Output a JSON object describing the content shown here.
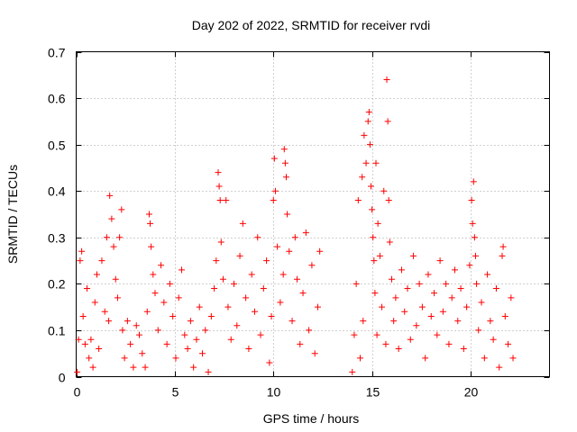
{
  "chart_data": {
    "type": "scatter",
    "title": "Day 202 of 2022, SRMTID for receiver rvdi",
    "xlabel": "GPS time / hours",
    "ylabel": "SRMTID / TECUs",
    "xlim": [
      0,
      24
    ],
    "ylim": [
      0,
      0.7
    ],
    "xticks": [
      0,
      5,
      10,
      15,
      20
    ],
    "xtick_labels": [
      "0",
      "5",
      "10",
      "15",
      "20"
    ],
    "yticks": [
      0,
      0.1,
      0.2,
      0.3,
      0.4,
      0.5,
      0.6,
      0.7
    ],
    "ytick_labels": [
      "0",
      "0.1",
      "0.2",
      "0.3",
      "0.4",
      "0.5",
      "0.6",
      "0.7"
    ],
    "grid": true,
    "marker": "+",
    "color": "#ff0000",
    "data_gap_hours": [
      12.4,
      13.9
    ],
    "series": [
      {
        "name": "rvdi",
        "points": [
          [
            0.05,
            0.01
          ],
          [
            0.12,
            0.08
          ],
          [
            0.2,
            0.25
          ],
          [
            0.28,
            0.27
          ],
          [
            0.35,
            0.13
          ],
          [
            0.45,
            0.07
          ],
          [
            0.55,
            0.19
          ],
          [
            0.65,
            0.04
          ],
          [
            0.75,
            0.08
          ],
          [
            0.85,
            0.02
          ],
          [
            0.95,
            0.16
          ],
          [
            1.05,
            0.22
          ],
          [
            1.15,
            0.06
          ],
          [
            1.3,
            0.25
          ],
          [
            1.45,
            0.14
          ],
          [
            1.55,
            0.3
          ],
          [
            1.65,
            0.12
          ],
          [
            1.7,
            0.39
          ],
          [
            1.8,
            0.34
          ],
          [
            1.9,
            0.28
          ],
          [
            2.0,
            0.21
          ],
          [
            2.1,
            0.17
          ],
          [
            2.2,
            0.3
          ],
          [
            2.3,
            0.36
          ],
          [
            2.35,
            0.1
          ],
          [
            2.45,
            0.04
          ],
          [
            2.6,
            0.12
          ],
          [
            2.75,
            0.07
          ],
          [
            2.9,
            0.02
          ],
          [
            3.05,
            0.11
          ],
          [
            3.2,
            0.09
          ],
          [
            3.35,
            0.05
          ],
          [
            3.5,
            0.02
          ],
          [
            3.6,
            0.14
          ],
          [
            3.7,
            0.35
          ],
          [
            3.75,
            0.33
          ],
          [
            3.8,
            0.28
          ],
          [
            3.9,
            0.22
          ],
          [
            4.0,
            0.18
          ],
          [
            4.15,
            0.1
          ],
          [
            4.3,
            0.24
          ],
          [
            4.45,
            0.16
          ],
          [
            4.6,
            0.07
          ],
          [
            4.75,
            0.2
          ],
          [
            4.9,
            0.13
          ],
          [
            5.05,
            0.04
          ],
          [
            5.2,
            0.17
          ],
          [
            5.35,
            0.23
          ],
          [
            5.5,
            0.09
          ],
          [
            5.65,
            0.06
          ],
          [
            5.8,
            0.12
          ],
          [
            5.95,
            0.02
          ],
          [
            6.1,
            0.08
          ],
          [
            6.25,
            0.15
          ],
          [
            6.4,
            0.05
          ],
          [
            6.55,
            0.1
          ],
          [
            6.7,
            0.01
          ],
          [
            6.85,
            0.13
          ],
          [
            7.0,
            0.19
          ],
          [
            7.1,
            0.25
          ],
          [
            7.2,
            0.44
          ],
          [
            7.25,
            0.41
          ],
          [
            7.3,
            0.38
          ],
          [
            7.35,
            0.29
          ],
          [
            7.45,
            0.21
          ],
          [
            7.6,
            0.38
          ],
          [
            7.7,
            0.15
          ],
          [
            7.85,
            0.08
          ],
          [
            8.0,
            0.2
          ],
          [
            8.15,
            0.11
          ],
          [
            8.3,
            0.26
          ],
          [
            8.45,
            0.33
          ],
          [
            8.6,
            0.17
          ],
          [
            8.75,
            0.06
          ],
          [
            8.9,
            0.22
          ],
          [
            9.05,
            0.14
          ],
          [
            9.2,
            0.3
          ],
          [
            9.35,
            0.09
          ],
          [
            9.5,
            0.19
          ],
          [
            9.65,
            0.25
          ],
          [
            9.8,
            0.03
          ],
          [
            9.9,
            0.13
          ],
          [
            10.0,
            0.38
          ],
          [
            10.05,
            0.47
          ],
          [
            10.1,
            0.4
          ],
          [
            10.2,
            0.28
          ],
          [
            10.35,
            0.16
          ],
          [
            10.5,
            0.22
          ],
          [
            10.55,
            0.49
          ],
          [
            10.6,
            0.46
          ],
          [
            10.65,
            0.43
          ],
          [
            10.7,
            0.35
          ],
          [
            10.8,
            0.27
          ],
          [
            10.95,
            0.12
          ],
          [
            11.1,
            0.3
          ],
          [
            11.2,
            0.21
          ],
          [
            11.35,
            0.07
          ],
          [
            11.5,
            0.18
          ],
          [
            11.65,
            0.31
          ],
          [
            11.8,
            0.1
          ],
          [
            11.95,
            0.24
          ],
          [
            12.1,
            0.05
          ],
          [
            12.25,
            0.15
          ],
          [
            12.35,
            0.27
          ],
          [
            14.0,
            0.01
          ],
          [
            14.1,
            0.09
          ],
          [
            14.2,
            0.2
          ],
          [
            14.3,
            0.38
          ],
          [
            14.4,
            0.04
          ],
          [
            14.5,
            0.43
          ],
          [
            14.55,
            0.12
          ],
          [
            14.6,
            0.52
          ],
          [
            14.7,
            0.46
          ],
          [
            14.8,
            0.55
          ],
          [
            14.85,
            0.57
          ],
          [
            14.9,
            0.5
          ],
          [
            14.95,
            0.41
          ],
          [
            15.0,
            0.36
          ],
          [
            15.05,
            0.3
          ],
          [
            15.1,
            0.25
          ],
          [
            15.15,
            0.18
          ],
          [
            15.2,
            0.46
          ],
          [
            15.25,
            0.09
          ],
          [
            15.3,
            0.33
          ],
          [
            15.4,
            0.26
          ],
          [
            15.5,
            0.15
          ],
          [
            15.6,
            0.4
          ],
          [
            15.7,
            0.07
          ],
          [
            15.75,
            0.64
          ],
          [
            15.8,
            0.55
          ],
          [
            15.85,
            0.38
          ],
          [
            15.9,
            0.29
          ],
          [
            16.0,
            0.21
          ],
          [
            16.1,
            0.12
          ],
          [
            16.2,
            0.17
          ],
          [
            16.35,
            0.06
          ],
          [
            16.5,
            0.23
          ],
          [
            16.65,
            0.14
          ],
          [
            16.8,
            0.19
          ],
          [
            16.95,
            0.08
          ],
          [
            17.1,
            0.26
          ],
          [
            17.25,
            0.11
          ],
          [
            17.4,
            0.2
          ],
          [
            17.55,
            0.15
          ],
          [
            17.7,
            0.04
          ],
          [
            17.85,
            0.22
          ],
          [
            18.0,
            0.13
          ],
          [
            18.15,
            0.18
          ],
          [
            18.3,
            0.09
          ],
          [
            18.45,
            0.25
          ],
          [
            18.6,
            0.14
          ],
          [
            18.75,
            0.2
          ],
          [
            18.9,
            0.07
          ],
          [
            19.05,
            0.17
          ],
          [
            19.2,
            0.23
          ],
          [
            19.35,
            0.12
          ],
          [
            19.5,
            0.19
          ],
          [
            19.65,
            0.06
          ],
          [
            19.8,
            0.15
          ],
          [
            19.95,
            0.24
          ],
          [
            20.05,
            0.38
          ],
          [
            20.1,
            0.33
          ],
          [
            20.15,
            0.42
          ],
          [
            20.2,
            0.3
          ],
          [
            20.25,
            0.26
          ],
          [
            20.3,
            0.2
          ],
          [
            20.4,
            0.1
          ],
          [
            20.55,
            0.16
          ],
          [
            20.7,
            0.04
          ],
          [
            20.85,
            0.22
          ],
          [
            21.0,
            0.12
          ],
          [
            21.15,
            0.08
          ],
          [
            21.3,
            0.19
          ],
          [
            21.45,
            0.02
          ],
          [
            21.6,
            0.26
          ],
          [
            21.65,
            0.28
          ],
          [
            21.75,
            0.13
          ],
          [
            21.9,
            0.07
          ],
          [
            22.05,
            0.17
          ],
          [
            22.15,
            0.04
          ]
        ]
      }
    ]
  }
}
